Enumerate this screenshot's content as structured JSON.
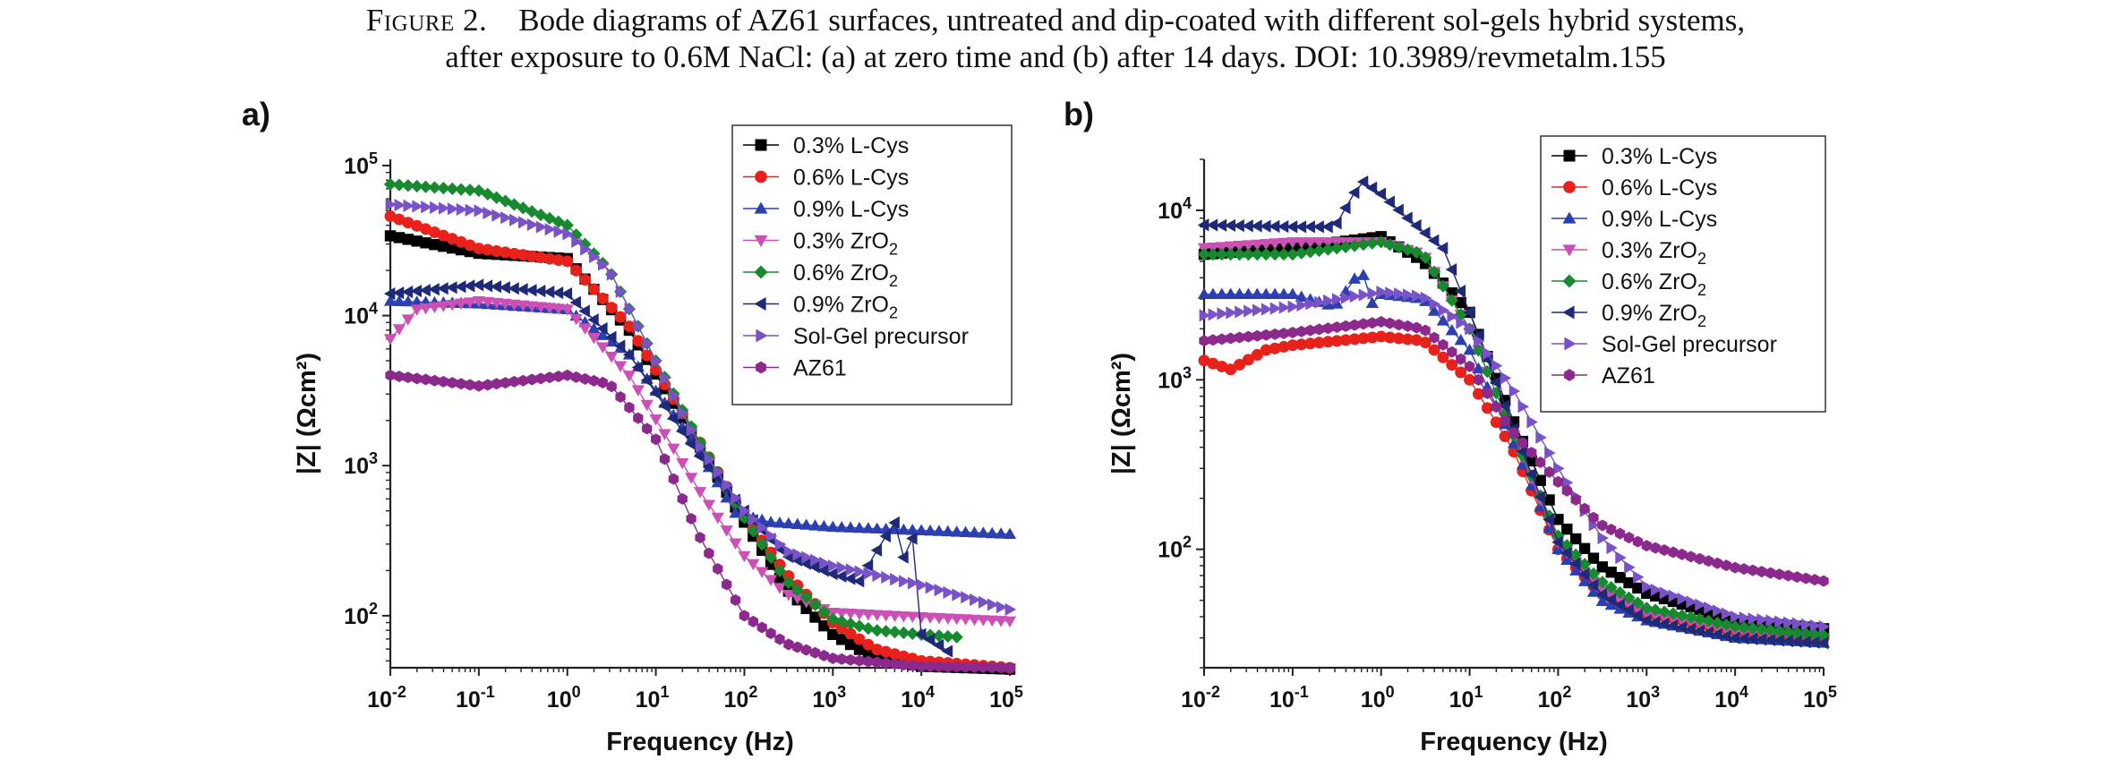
{
  "caption": {
    "label": "Figure 2.",
    "line1": "Bode diagrams of AZ61 surfaces, untreated and dip-coated with different sol-gels hybrid systems,",
    "line2": "after exposure to 0.6M NaCl: (a) at zero time and (b) after 14 days. DOI: 10.3989/revmetalm.155"
  },
  "chart_data": [
    {
      "type": "scatter",
      "panel_label": "a)",
      "xlabel": "Frequency (Hz)",
      "ylabel": "|Z| (Ωcm²)",
      "xscale": "log",
      "yscale": "log",
      "xlim": [
        0.01,
        100000
      ],
      "ylim": [
        45,
        110000
      ],
      "x_tick_labels": [
        "10-2",
        "10-1",
        "100",
        "101",
        "102",
        "103",
        "104",
        "105"
      ],
      "y_tick_labels": [
        "102",
        "103",
        "104",
        "105"
      ],
      "legend_position": "top-right",
      "series": [
        {
          "name": "0.3% L-Cys",
          "marker": "square",
          "color": "#000000",
          "x_end": 100000,
          "points": [
            [
              0.01,
              34000
            ],
            [
              0.1,
              26000
            ],
            [
              1,
              24000
            ],
            [
              5,
              8000
            ],
            [
              30,
              1400
            ],
            [
              100,
              420
            ],
            [
              300,
              150
            ],
            [
              1000,
              75
            ],
            [
              3000,
              52
            ],
            [
              10000,
              46
            ],
            [
              100000,
              44
            ]
          ]
        },
        {
          "name": "0.6% L-Cys",
          "marker": "circle",
          "color": "#e8221b",
          "x_end": 100000,
          "points": [
            [
              0.01,
              46000
            ],
            [
              0.1,
              28000
            ],
            [
              1,
              23000
            ],
            [
              5,
              8500
            ],
            [
              30,
              1500
            ],
            [
              100,
              460
            ],
            [
              300,
              190
            ],
            [
              1000,
              90
            ],
            [
              3000,
              60
            ],
            [
              10000,
              50
            ],
            [
              100000,
              45
            ]
          ]
        },
        {
          "name": "0.9% L-Cys",
          "marker": "triangle-up",
          "color": "#2b3fb0",
          "x_end": 100000,
          "points": [
            [
              0.01,
              12500
            ],
            [
              0.1,
              12000
            ],
            [
              1,
              11000
            ],
            [
              5,
              5500
            ],
            [
              30,
              1300
            ],
            [
              80,
              480
            ],
            [
              200,
              420
            ],
            [
              1000,
              390
            ],
            [
              10000,
              370
            ],
            [
              100000,
              350
            ]
          ]
        },
        {
          "name": "0.3% ZrO2",
          "marker": "triangle-down",
          "color": "#cc4fb6",
          "x_end": 100000,
          "points": [
            [
              0.01,
              7000
            ],
            [
              0.02,
              11000
            ],
            [
              0.1,
              12500
            ],
            [
              1,
              11000
            ],
            [
              5,
              4000
            ],
            [
              30,
              700
            ],
            [
              100,
              250
            ],
            [
              300,
              140
            ],
            [
              1000,
              105
            ],
            [
              10000,
              98
            ],
            [
              100000,
              92
            ]
          ]
        },
        {
          "name": "0.6% ZrO2",
          "marker": "diamond",
          "color": "#178a2f",
          "x_end": 25000,
          "points": [
            [
              0.01,
              75000
            ],
            [
              0.1,
              68000
            ],
            [
              1,
              40000
            ],
            [
              3,
              20000
            ],
            [
              10,
              5000
            ],
            [
              30,
              1500
            ],
            [
              100,
              450
            ],
            [
              300,
              170
            ],
            [
              1000,
              95
            ],
            [
              3000,
              80
            ],
            [
              10000,
              75
            ],
            [
              25000,
              72
            ]
          ]
        },
        {
          "name": "0.9% ZrO2",
          "marker": "triangle-left",
          "color": "#1e2a78",
          "x_end": 20000,
          "points": [
            [
              0.01,
              14000
            ],
            [
              0.1,
              16000
            ],
            [
              1,
              14000
            ],
            [
              5,
              5500
            ],
            [
              30,
              1200
            ],
            [
              100,
              500
            ],
            [
              300,
              250
            ],
            [
              1000,
              190
            ],
            [
              2000,
              170
            ],
            [
              3000,
              260
            ],
            [
              5000,
              420
            ],
            [
              6000,
              230
            ],
            [
              8000,
              330
            ],
            [
              10000,
              75
            ],
            [
              15000,
              65
            ],
            [
              20000,
              58
            ]
          ]
        },
        {
          "name": "Sol-Gel precursor",
          "marker": "triangle-right",
          "color": "#7a52c7",
          "x_end": 100000,
          "points": [
            [
              0.01,
              55000
            ],
            [
              0.1,
              50000
            ],
            [
              1,
              35000
            ],
            [
              3,
              20000
            ],
            [
              10,
              5000
            ],
            [
              30,
              1400
            ],
            [
              100,
              500
            ],
            [
              300,
              270
            ],
            [
              1000,
              215
            ],
            [
              10000,
              160
            ],
            [
              100000,
              110
            ]
          ]
        },
        {
          "name": "AZ61",
          "marker": "hexagon",
          "color": "#8b2a8c",
          "x_end": 100000,
          "points": [
            [
              0.01,
              4000
            ],
            [
              0.1,
              3400
            ],
            [
              1,
              4000
            ],
            [
              3,
              3500
            ],
            [
              10,
              1500
            ],
            [
              30,
              350
            ],
            [
              100,
              100
            ],
            [
              300,
              65
            ],
            [
              1000,
              52
            ],
            [
              10000,
              46
            ],
            [
              100000,
              45
            ]
          ]
        }
      ]
    },
    {
      "type": "scatter",
      "panel_label": "b)",
      "xlabel": "Frequency (Hz)",
      "ylabel": "|Z| (Ωcm²)",
      "xscale": "log",
      "yscale": "log",
      "xlim": [
        0.01,
        100000
      ],
      "ylim": [
        20,
        20000
      ],
      "x_tick_labels": [
        "10-2",
        "10-1",
        "100",
        "101",
        "102",
        "103",
        "104",
        "105"
      ],
      "y_tick_labels": [
        "102",
        "103",
        "104"
      ],
      "legend_position": "top-right",
      "series": [
        {
          "name": "0.3% L-Cys",
          "marker": "square",
          "color": "#000000",
          "x_end": 100000,
          "points": [
            [
              0.01,
              5500
            ],
            [
              0.1,
              6000
            ],
            [
              1,
              7000
            ],
            [
              3,
              5000
            ],
            [
              10,
              2500
            ],
            [
              30,
              600
            ],
            [
              100,
              150
            ],
            [
              300,
              80
            ],
            [
              1000,
              55
            ],
            [
              10000,
              38
            ],
            [
              100000,
              34
            ]
          ]
        },
        {
          "name": "0.6% L-Cys",
          "marker": "circle",
          "color": "#e8221b",
          "x_end": 100000,
          "points": [
            [
              0.01,
              1300
            ],
            [
              0.02,
              1150
            ],
            [
              0.05,
              1500
            ],
            [
              0.1,
              1600
            ],
            [
              1,
              1800
            ],
            [
              3,
              1700
            ],
            [
              10,
              1000
            ],
            [
              30,
              400
            ],
            [
              100,
              100
            ],
            [
              300,
              55
            ],
            [
              1000,
              42
            ],
            [
              10000,
              33
            ],
            [
              100000,
              30
            ]
          ]
        },
        {
          "name": "0.9% L-Cys",
          "marker": "triangle-up",
          "color": "#2b3fb0",
          "x_end": 100000,
          "points": [
            [
              0.01,
              3200
            ],
            [
              0.1,
              3200
            ],
            [
              0.3,
              2700
            ],
            [
              0.6,
              4500
            ],
            [
              0.8,
              2800
            ],
            [
              1,
              3200
            ],
            [
              3,
              3000
            ],
            [
              10,
              1500
            ],
            [
              30,
              450
            ],
            [
              100,
              100
            ],
            [
              300,
              50
            ],
            [
              1000,
              38
            ],
            [
              10000,
              30
            ],
            [
              100000,
              28
            ]
          ]
        },
        {
          "name": "0.3% ZrO2",
          "marker": "triangle-down",
          "color": "#cc4fb6",
          "x_end": 100000,
          "points": [
            [
              0.01,
              6000
            ],
            [
              0.1,
              6500
            ],
            [
              1,
              6500
            ],
            [
              3,
              5500
            ],
            [
              10,
              2000
            ],
            [
              30,
              500
            ],
            [
              100,
              110
            ],
            [
              300,
              58
            ],
            [
              1000,
              42
            ],
            [
              10000,
              33
            ],
            [
              100000,
              30
            ]
          ]
        },
        {
          "name": "0.6% ZrO2",
          "marker": "diamond",
          "color": "#178a2f",
          "x_end": 100000,
          "points": [
            [
              0.01,
              5500
            ],
            [
              0.1,
              5500
            ],
            [
              1,
              6500
            ],
            [
              3,
              5500
            ],
            [
              10,
              2000
            ],
            [
              30,
              500
            ],
            [
              100,
              120
            ],
            [
              300,
              65
            ],
            [
              1000,
              45
            ],
            [
              10000,
              35
            ],
            [
              100000,
              31
            ]
          ]
        },
        {
          "name": "0.9% ZrO2",
          "marker": "triangle-left",
          "color": "#1e2a78",
          "x_end": 100000,
          "points": [
            [
              0.01,
              8200
            ],
            [
              0.1,
              8000
            ],
            [
              0.3,
              8000
            ],
            [
              0.6,
              15000
            ],
            [
              1,
              12500
            ],
            [
              2,
              9000
            ],
            [
              5,
              6000
            ],
            [
              10,
              2500
            ],
            [
              30,
              550
            ],
            [
              100,
              110
            ],
            [
              300,
              55
            ],
            [
              1000,
              38
            ],
            [
              10000,
              30
            ],
            [
              100000,
              28
            ]
          ]
        },
        {
          "name": "Sol-Gel precursor",
          "marker": "triangle-right",
          "color": "#7a52c7",
          "x_end": 100000,
          "points": [
            [
              0.01,
              2400
            ],
            [
              0.1,
              2700
            ],
            [
              1,
              3300
            ],
            [
              3,
              3100
            ],
            [
              10,
              2000
            ],
            [
              30,
              900
            ],
            [
              100,
              300
            ],
            [
              300,
              120
            ],
            [
              1000,
              60
            ],
            [
              10000,
              40
            ],
            [
              100000,
              35
            ]
          ]
        },
        {
          "name": "AZ61",
          "marker": "hexagon",
          "color": "#8b2a8c",
          "x_end": 100000,
          "points": [
            [
              0.01,
              1700
            ],
            [
              0.1,
              1900
            ],
            [
              1,
              2200
            ],
            [
              3,
              2000
            ],
            [
              10,
              1200
            ],
            [
              30,
              500
            ],
            [
              100,
              250
            ],
            [
              300,
              140
            ],
            [
              1000,
              105
            ],
            [
              10000,
              78
            ],
            [
              100000,
              65
            ]
          ]
        }
      ]
    }
  ]
}
